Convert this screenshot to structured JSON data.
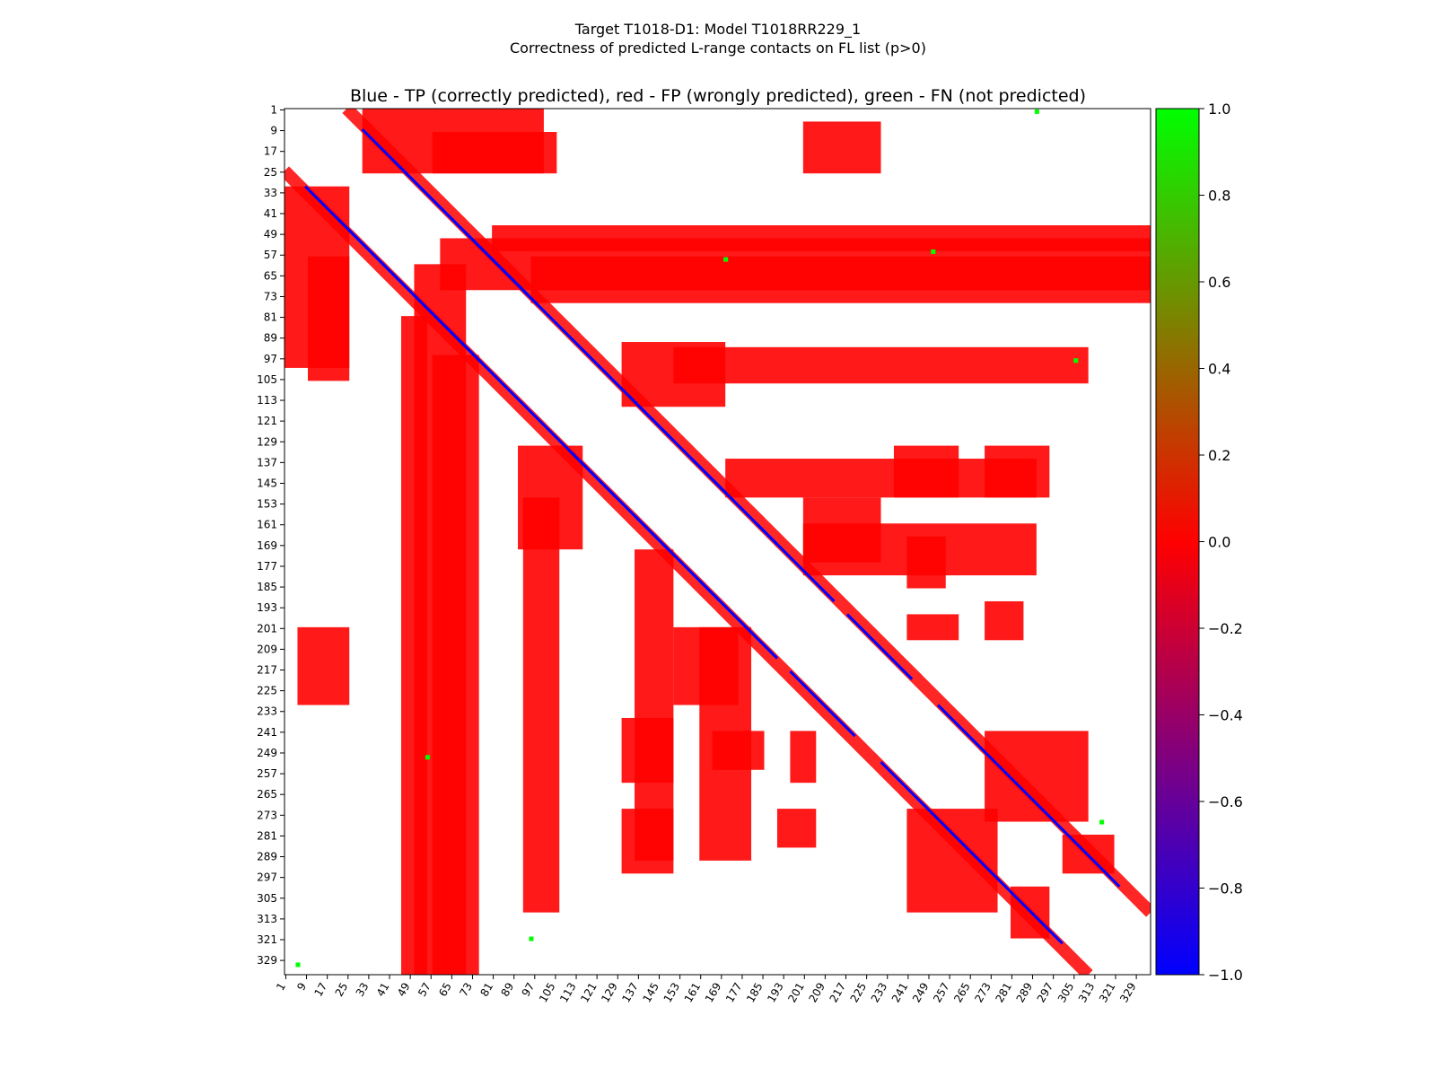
{
  "figure": {
    "title_line1": "Target T1018-D1: Model T1018RR229_1",
    "title_line2": "Correctness of predicted L-range contacts on FL list (p>0)",
    "axes_title": "Blue - TP (correctly predicted), red - FP (wrongly predicted), green - FN (not predicted)"
  },
  "colors": {
    "tp": "#0000ff",
    "fp": "#ff0000",
    "fn": "#00ff00",
    "background": "#ffffff"
  },
  "chart_data": {
    "type": "heatmap",
    "title": "Blue - TP (correctly predicted), red - FP (wrongly predicted), green - FN (not predicted)",
    "n_residues": 334,
    "x_ticks": [
      1,
      9,
      17,
      25,
      33,
      41,
      49,
      57,
      65,
      73,
      81,
      89,
      97,
      105,
      113,
      121,
      129,
      137,
      145,
      153,
      161,
      169,
      177,
      185,
      193,
      201,
      209,
      217,
      225,
      233,
      241,
      249,
      257,
      265,
      273,
      281,
      289,
      297,
      305,
      313,
      321,
      329
    ],
    "y_ticks": [
      1,
      9,
      17,
      25,
      33,
      41,
      49,
      57,
      65,
      73,
      81,
      89,
      97,
      105,
      113,
      121,
      129,
      137,
      145,
      153,
      161,
      169,
      177,
      185,
      193,
      201,
      209,
      217,
      225,
      233,
      241,
      249,
      257,
      265,
      273,
      281,
      289,
      297,
      305,
      313,
      321,
      329
    ],
    "colorbar": {
      "min": -1.0,
      "max": 1.0,
      "ticks": [
        "1.0",
        "0.8",
        "0.6",
        "0.4",
        "0.2",
        "0.0",
        "−0.2",
        "−0.4",
        "−0.6",
        "−0.8",
        "−1.0"
      ]
    },
    "legend": {
      "tp": "blue",
      "fp": "red",
      "fn": "green"
    },
    "regions": [
      {
        "class": "fp",
        "i": [
          9,
          25
        ],
        "j": [
          57,
          105
        ]
      },
      {
        "class": "fp",
        "i": [
          57,
          75
        ],
        "j": [
          95,
          334
        ]
      },
      {
        "class": "fp",
        "i": [
          45,
          55
        ],
        "j": [
          80,
          334
        ]
      },
      {
        "class": "fp",
        "i": [
          5,
          25
        ],
        "j": [
          200,
          230
        ]
      },
      {
        "class": "fp",
        "i": [
          92,
          106
        ],
        "j": [
          150,
          310
        ]
      },
      {
        "class": "fp",
        "i": [
          135,
          150
        ],
        "j": [
          170,
          290
        ]
      },
      {
        "class": "fp",
        "i": [
          160,
          180
        ],
        "j": [
          200,
          290
        ]
      },
      {
        "class": "fp",
        "i": [
          30,
          100
        ],
        "j": [
          0,
          25
        ]
      },
      {
        "class": "fp",
        "i": [
          60,
          334
        ],
        "j": [
          50,
          70
        ]
      },
      {
        "class": "fp",
        "i": [
          130,
          170
        ],
        "j": [
          90,
          115
        ]
      },
      {
        "class": "fp",
        "i": [
          235,
          260
        ],
        "j": [
          130,
          150
        ]
      },
      {
        "class": "fp",
        "i": [
          270,
          295
        ],
        "j": [
          130,
          150
        ]
      },
      {
        "class": "fp",
        "i": [
          240,
          255
        ],
        "j": [
          165,
          185
        ]
      },
      {
        "class": "fp",
        "i": [
          240,
          260
        ],
        "j": [
          195,
          205
        ]
      },
      {
        "class": "fp",
        "i": [
          270,
          285
        ],
        "j": [
          190,
          205
        ]
      },
      {
        "class": "fp",
        "i": [
          300,
          320
        ],
        "j": [
          280,
          295
        ]
      },
      {
        "class": "fp",
        "i": [
          240,
          275
        ],
        "j": [
          270,
          310
        ]
      },
      {
        "class": "fp",
        "i": [
          200,
          230
        ],
        "j": [
          150,
          175
        ]
      }
    ],
    "tp_diagonal": [
      [
        8,
        92
      ],
      [
        20,
        76
      ],
      [
        62,
        72
      ],
      [
        92,
        128
      ],
      [
        110,
        148
      ],
      [
        135,
        168
      ],
      [
        160,
        190
      ],
      [
        195,
        220
      ],
      [
        230,
        270
      ],
      [
        270,
        300
      ]
    ],
    "fn_points": [
      [
        1,
        290
      ],
      [
        55,
        250
      ],
      [
        58,
        170
      ],
      [
        97,
        305
      ],
      [
        275,
        315
      ],
      [
        250,
        55
      ],
      [
        320,
        95
      ],
      [
        330,
        5
      ]
    ]
  }
}
